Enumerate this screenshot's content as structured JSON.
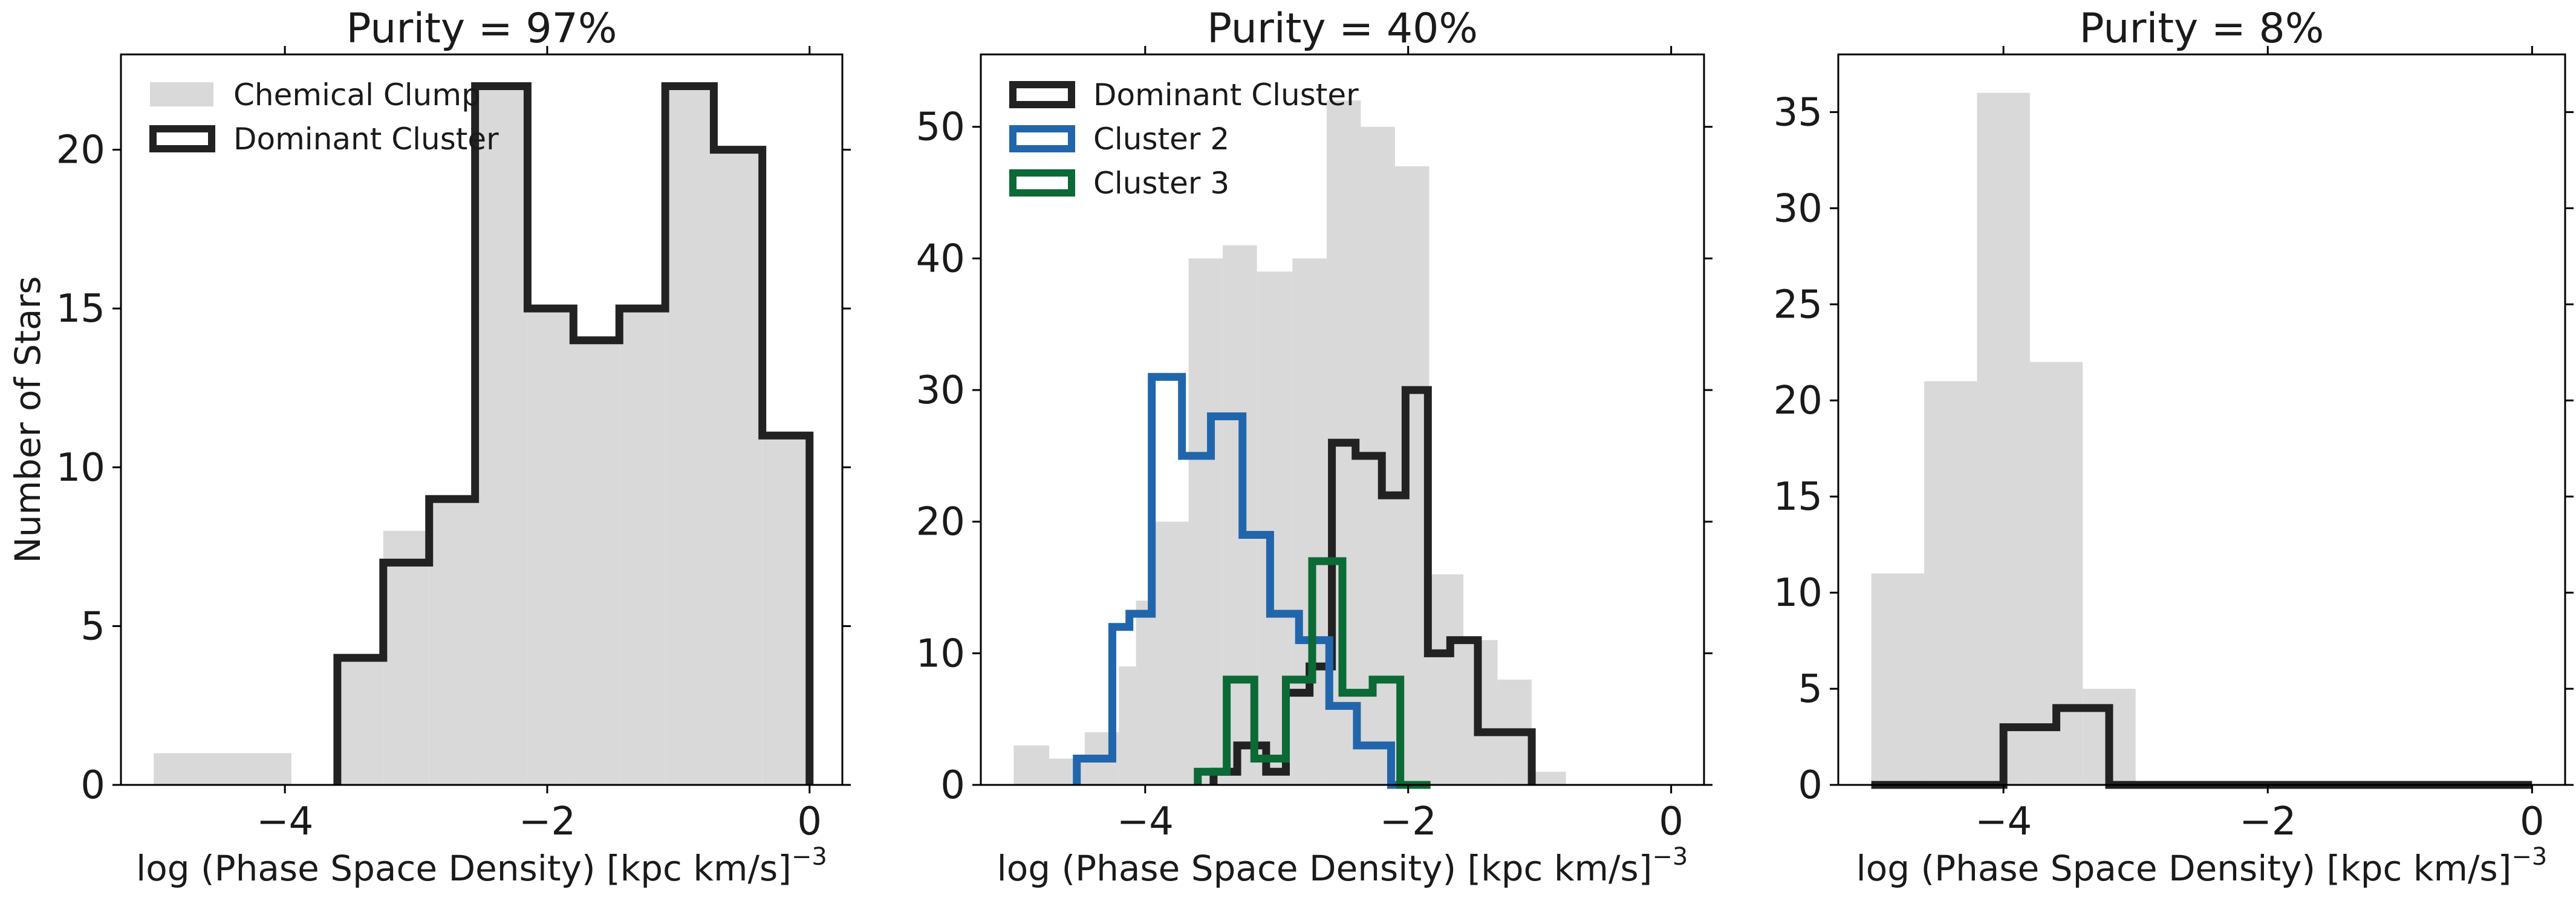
{
  "chart_data": [
    {
      "type": "histogram",
      "title": "Purity = 97%",
      "xlabel": "log (Phase Space Density) [kpc km/s]",
      "xlabel_exponent": "−3",
      "ylabel": "Number of Stars",
      "xlim": [
        -5.25,
        0.25
      ],
      "ylim": [
        0,
        23
      ],
      "xticks": [
        -4,
        -2,
        0
      ],
      "xtick_labels": [
        "−4",
        "−2",
        "0"
      ],
      "yticks": [
        0,
        5,
        10,
        15,
        20
      ],
      "ytick_labels": [
        "0",
        "5",
        "10",
        "15",
        "20"
      ],
      "legend": {
        "location": "upper-left",
        "entries": [
          {
            "label": "Chemical Clump",
            "style": "fill",
            "color": "#d9d9d9"
          },
          {
            "label": "Dominant Cluster",
            "style": "step",
            "color": "#222222"
          }
        ]
      },
      "filled": {
        "name": "Chemical Clump",
        "color": "#d9d9d9",
        "bins": [
          [
            -5.0,
            -3.95,
            1
          ],
          [
            -3.6,
            -3.25,
            4
          ],
          [
            -3.25,
            -2.9,
            8
          ],
          [
            -2.9,
            -2.55,
            9
          ],
          [
            -2.55,
            -2.15,
            22
          ],
          [
            -2.15,
            -1.8,
            15
          ],
          [
            -1.8,
            -1.45,
            14
          ],
          [
            -1.45,
            -1.1,
            15
          ],
          [
            -1.1,
            -0.73,
            22
          ],
          [
            -0.73,
            -0.36,
            20
          ],
          [
            -0.36,
            0.0,
            11
          ]
        ]
      },
      "steps": [
        {
          "name": "Dominant Cluster",
          "color": "#222222",
          "edges": [
            -3.6,
            -3.25,
            -2.9,
            -2.55,
            -2.15,
            -1.8,
            -1.45,
            -1.1,
            -0.73,
            -0.36,
            0.0
          ],
          "counts": [
            4,
            7,
            9,
            22,
            15,
            14,
            15,
            22,
            20,
            11
          ]
        }
      ]
    },
    {
      "type": "histogram",
      "title": "Purity = 40%",
      "xlabel": "log (Phase Space Density) [kpc km/s]",
      "xlabel_exponent": "−3",
      "ylabel": "",
      "xlim": [
        -5.25,
        0.25
      ],
      "ylim": [
        0,
        55.5
      ],
      "xticks": [
        -4,
        -2,
        0
      ],
      "xtick_labels": [
        "−4",
        "−2",
        "0"
      ],
      "yticks": [
        0,
        10,
        20,
        30,
        40,
        50
      ],
      "ytick_labels": [
        "0",
        "10",
        "20",
        "30",
        "40",
        "50"
      ],
      "legend": {
        "location": "upper-left",
        "entries": [
          {
            "label": "Dominant Cluster",
            "style": "step",
            "color": "#222222"
          },
          {
            "label": "Cluster 2",
            "style": "step",
            "color": "#2166ac"
          },
          {
            "label": "Cluster 3",
            "style": "step",
            "color": "#0b6a35"
          }
        ]
      },
      "filled": {
        "name": "Chemical Clump",
        "color": "#d9d9d9",
        "edges": [
          -5.0,
          -4.73,
          -4.46,
          -4.2,
          -4.07,
          -3.93,
          -3.67,
          -3.41,
          -3.15,
          -2.88,
          -2.62,
          -2.36,
          -2.1,
          -1.84,
          -1.58,
          -1.32,
          -1.06,
          -0.8
        ],
        "counts": [
          3,
          2,
          4,
          9,
          14,
          20,
          40,
          41,
          39,
          40,
          52,
          50,
          47,
          16,
          11,
          8,
          1
        ]
      },
      "steps": [
        {
          "name": "Dominant Cluster",
          "color": "#222222",
          "edges": [
            -3.48,
            -3.3,
            -3.08,
            -2.93,
            -2.75,
            -2.58,
            -2.4,
            -2.2,
            -2.02,
            -1.85,
            -1.68,
            -1.47,
            -1.06
          ],
          "counts": [
            1,
            3,
            1,
            7,
            9,
            26,
            25,
            22,
            30,
            10,
            11,
            4
          ]
        },
        {
          "name": "Cluster 2",
          "color": "#2166ac",
          "edges": [
            -4.52,
            -4.25,
            -4.12,
            -3.95,
            -3.72,
            -3.5,
            -3.26,
            -3.05,
            -2.83,
            -2.6,
            -2.39,
            -2.13,
            -1.89
          ],
          "counts": [
            2,
            12,
            13,
            31,
            25,
            28,
            19,
            13,
            11,
            6,
            3,
            0
          ]
        },
        {
          "name": "Cluster 3",
          "color": "#0b6a35",
          "edges": [
            -3.6,
            -3.38,
            -3.17,
            -2.93,
            -2.73,
            -2.5,
            -2.27,
            -2.06,
            -1.83
          ],
          "counts": [
            1,
            8,
            2,
            8,
            17,
            7,
            8,
            0
          ]
        }
      ]
    },
    {
      "type": "histogram",
      "title": "Purity = 8%",
      "xlabel": "log (Phase Space Density) [kpc km/s]",
      "xlabel_exponent": "−3",
      "ylabel": "",
      "xlim": [
        -5.25,
        0.25
      ],
      "ylim": [
        0,
        38
      ],
      "xticks": [
        -4,
        -2,
        0
      ],
      "xtick_labels": [
        "−4",
        "−2",
        "0"
      ],
      "yticks": [
        0,
        5,
        10,
        15,
        20,
        25,
        30,
        35
      ],
      "ytick_labels": [
        "0",
        "5",
        "10",
        "15",
        "20",
        "25",
        "30",
        "35"
      ],
      "legend": null,
      "filled": {
        "name": "Chemical Clump",
        "color": "#d9d9d9",
        "edges": [
          -5.0,
          -4.6,
          -4.2,
          -3.8,
          -3.4,
          -3.0
        ],
        "counts": [
          11,
          21,
          36,
          22,
          5
        ]
      },
      "steps": [
        {
          "name": "Dominant Cluster",
          "color": "#222222",
          "edges": [
            -5.0,
            -4.0,
            -3.6,
            -3.2,
            0.0
          ],
          "counts": [
            0,
            3,
            4,
            0
          ]
        }
      ]
    }
  ]
}
